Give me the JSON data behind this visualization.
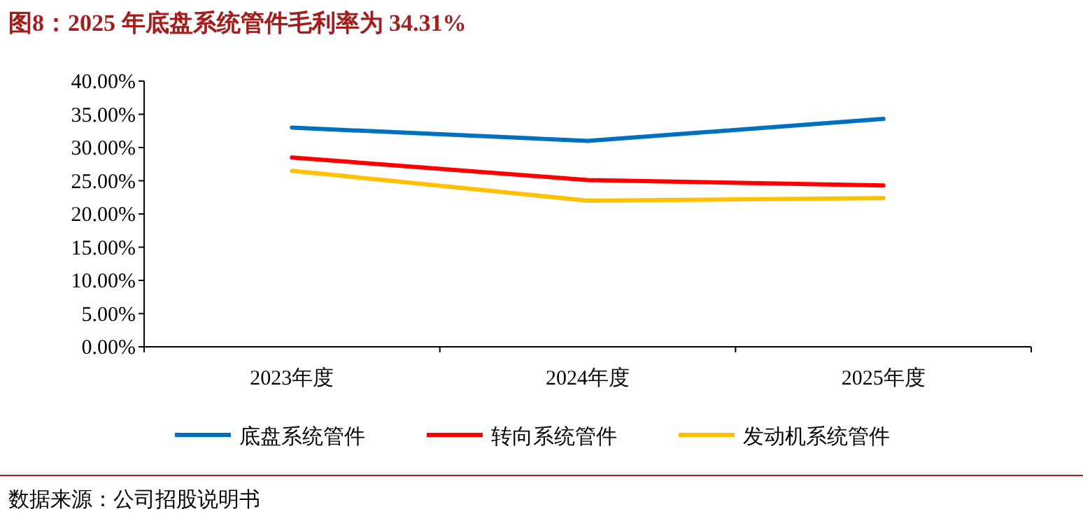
{
  "chart_data": {
    "type": "line",
    "title": "图8：2025 年底盘系统管件毛利率为 34.31%",
    "categories": [
      "2023年度",
      "2024年度",
      "2025年度"
    ],
    "series": [
      {
        "name": "底盘系统管件",
        "color": "#0070c0",
        "values": [
          33.0,
          31.0,
          34.31
        ]
      },
      {
        "name": "转向系统管件",
        "color": "#ff0000",
        "values": [
          28.5,
          25.1,
          24.3
        ]
      },
      {
        "name": "发动机系统管件",
        "color": "#ffc000",
        "values": [
          26.5,
          22.0,
          22.4
        ]
      }
    ],
    "ylim": [
      0,
      40
    ],
    "yticks": [
      {
        "value": 0,
        "label": "0.00%"
      },
      {
        "value": 5,
        "label": "5.00%"
      },
      {
        "value": 10,
        "label": "10.00%"
      },
      {
        "value": 15,
        "label": "15.00%"
      },
      {
        "value": 20,
        "label": "20.00%"
      },
      {
        "value": 25,
        "label": "25.00%"
      },
      {
        "value": 30,
        "label": "30.00%"
      },
      {
        "value": 35,
        "label": "35.00%"
      },
      {
        "value": 40,
        "label": "40.00%"
      }
    ],
    "grid": false,
    "legend": "bottom",
    "marker": "none",
    "line_style": "solid",
    "annotations": [
      "数据来源：公司招股说明书"
    ]
  }
}
